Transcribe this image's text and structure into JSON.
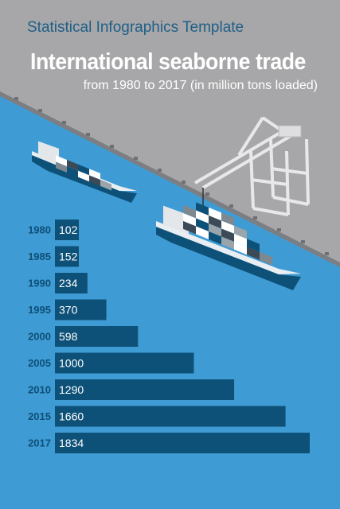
{
  "header": {
    "template_label": "Statistical Infographics Template",
    "title": "International seaborne trade",
    "subtitle": "from 1980 to 2017 (in million tons loaded)"
  },
  "colors": {
    "sea": "#3f9bd3",
    "dock": "#a7a7a9",
    "bar": "#0e5178",
    "year_label": "#0e4f78",
    "bar_label": "#ffffff"
  },
  "chart_data": {
    "type": "bar",
    "orientation": "horizontal",
    "categories": [
      "1980",
      "1985",
      "1990",
      "1995",
      "2000",
      "2005",
      "2010",
      "2015",
      "2017"
    ],
    "values": [
      102,
      152,
      234,
      370,
      598,
      1000,
      1290,
      1660,
      1834
    ],
    "xlim": [
      0,
      1834
    ],
    "grid": false,
    "legend": "none"
  }
}
